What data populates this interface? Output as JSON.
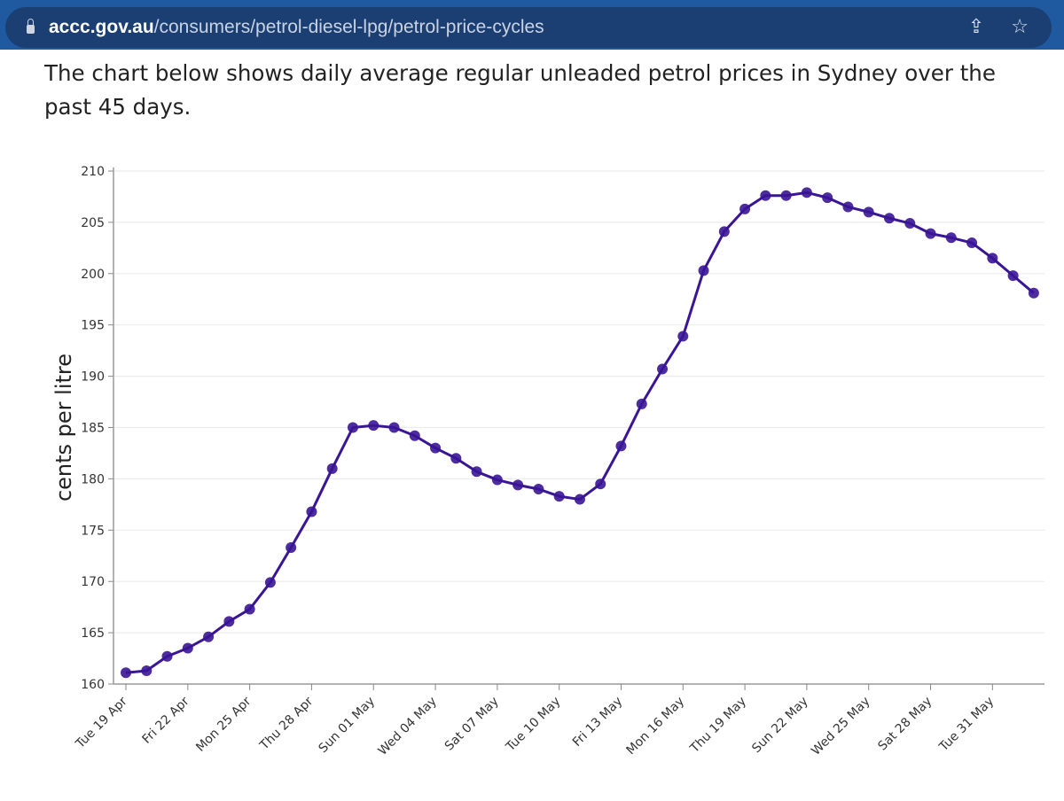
{
  "browser": {
    "url_domain": "accc.gov.au",
    "url_path": "/consumers/petrol-diesel-lpg/petrol-price-cycles",
    "icons": [
      "lock-icon",
      "share-icon",
      "star-icon"
    ]
  },
  "intro_text": "The chart below shows daily average regular unleaded petrol prices in Sydney over the past 45 days.",
  "colors": {
    "line": "#3a1596",
    "topbar": "#1f5aa0",
    "pill": "#1b3f73"
  },
  "chart_data": {
    "type": "line",
    "title": "",
    "xlabel": "",
    "ylabel": "cents per litre",
    "ylim": [
      160,
      210
    ],
    "yticks": [
      160,
      165,
      170,
      175,
      180,
      185,
      190,
      195,
      200,
      205,
      210
    ],
    "xtick_labels": [
      "Tue 19 Apr",
      "Fri 22 Apr",
      "Mon 25 Apr",
      "Thu 28 Apr",
      "Sun 01 May",
      "Wed 04 May",
      "Sat 07 May",
      "Tue 10 May",
      "Fri 13 May",
      "Mon 16 May",
      "Thu 19 May",
      "Sun 22 May",
      "Wed 25 May",
      "Sat 28 May",
      "Tue 31 May"
    ],
    "xtick_every_days": 3,
    "grid": true,
    "series": [
      {
        "name": "Sydney ULP daily average",
        "start_date": "19 Apr",
        "values": [
          161.1,
          161.3,
          162.7,
          163.5,
          164.6,
          166.1,
          167.3,
          169.9,
          173.3,
          176.8,
          181.0,
          185.0,
          185.2,
          185.0,
          184.2,
          183.0,
          182.0,
          180.7,
          179.9,
          179.4,
          179.0,
          178.3,
          178.0,
          179.5,
          183.2,
          187.3,
          190.7,
          193.9,
          200.3,
          204.1,
          206.3,
          207.6,
          207.6,
          207.9,
          207.4,
          206.5,
          206.0,
          205.4,
          204.9,
          203.9,
          203.5,
          203.0,
          201.5,
          199.8,
          198.1
        ]
      }
    ]
  }
}
